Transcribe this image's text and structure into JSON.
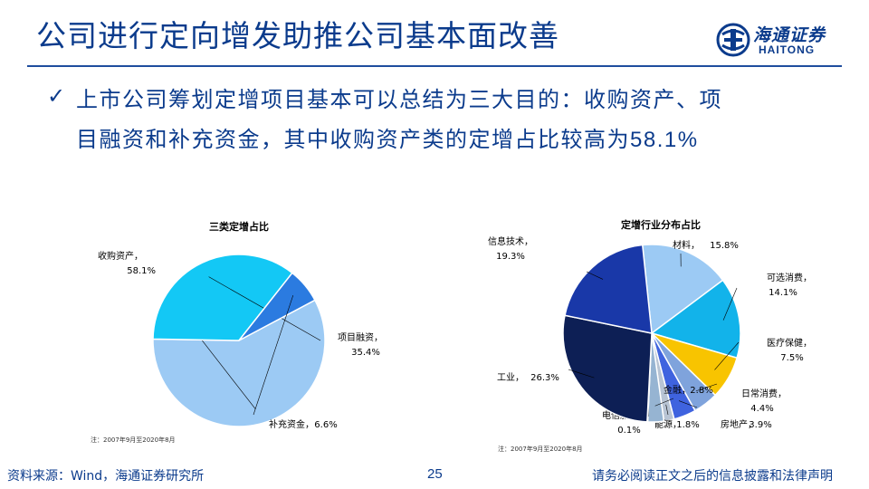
{
  "header": {
    "title": "公司进行定向增发助推公司基本面改善",
    "logo_cn": "海通证券",
    "logo_en": "HAITONG"
  },
  "bullet": {
    "check": "✓",
    "line1": "上市公司筹划定增项目基本可以总结为三大目的：收购资产、项",
    "line2_text": "目融资和补充资金，其中收购资产类的定增占比较高为",
    "line2_value": "58.1%"
  },
  "footer": {
    "source": "资料来源：Wind，海通证券研究所",
    "page": "25",
    "disclaimer": "请务必阅读正文之后的信息披露和法律声明"
  },
  "colors": {
    "brand": "#0b3b8c",
    "rule": "#1f4e9e"
  },
  "chart_data": [
    {
      "type": "pie",
      "title": "三类定增占比",
      "note": "注：2007年9月至2020年8月",
      "slices": [
        {
          "label": "收购资产",
          "value": 58.1,
          "display": "58.1%",
          "color": "#9ccaf4"
        },
        {
          "label": "项目融资",
          "value": 35.4,
          "display": "35.4%",
          "color": "#13c8f5"
        },
        {
          "label": "补充资金",
          "value": 6.6,
          "display": "6.6%",
          "color": "#2b7be0"
        }
      ]
    },
    {
      "type": "pie",
      "title": "定增行业分布占比",
      "note": "注：2007年9月至2020年8月",
      "slices": [
        {
          "label": "材料",
          "value": 15.8,
          "display": "15.8%",
          "color": "#9ccaf4"
        },
        {
          "label": "可选消费",
          "value": 14.1,
          "display": "14.1%",
          "color": "#12b3ea"
        },
        {
          "label": "医疗保健",
          "value": 7.5,
          "display": "7.5%",
          "color": "#f8c400"
        },
        {
          "label": "日常消费",
          "value": 4.4,
          "display": "4.4%",
          "color": "#7fa3dc"
        },
        {
          "label": "房地产",
          "value": 3.9,
          "display": "3.9%",
          "color": "#3f63df"
        },
        {
          "label": "能源",
          "value": 1.8,
          "display": "1.8%",
          "color": "#b8c4d4"
        },
        {
          "label": "金融",
          "value": 2.8,
          "display": "2.8%",
          "color": "#96b4d2"
        },
        {
          "label": "电信服务",
          "value": 0.1,
          "display": "0.1%",
          "color": "#11306a"
        },
        {
          "label": "工业",
          "value": 26.3,
          "display": "26.3%",
          "color": "#0d1f55"
        },
        {
          "label": "信息技术",
          "value": 19.3,
          "display": "19.3%",
          "color": "#1938a8"
        }
      ]
    }
  ]
}
